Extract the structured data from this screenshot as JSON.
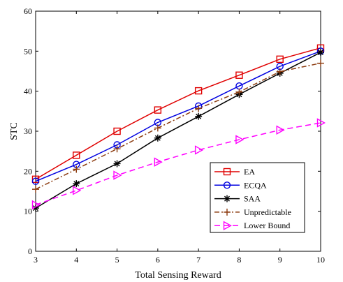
{
  "chart_data": {
    "type": "line",
    "xlabel": "Total Sensing Reward",
    "ylabel": "STC",
    "xlim": [
      3,
      10
    ],
    "ylim": [
      0,
      60
    ],
    "x": [
      3,
      4,
      5,
      6,
      7,
      8,
      9,
      10
    ],
    "xticks": [
      "3",
      "4",
      "5",
      "6",
      "7",
      "8",
      "9",
      "10"
    ],
    "yticks": [
      "0",
      "10",
      "20",
      "30",
      "40",
      "50",
      "60"
    ],
    "grid": false,
    "legend_position": "bottom-right",
    "series": [
      {
        "name": "EA",
        "color": "#e00000",
        "dash": "solid",
        "marker": "square",
        "values": [
          18.0,
          24.0,
          30.0,
          35.3,
          40.1,
          44.0,
          48.0,
          50.8
        ]
      },
      {
        "name": "ECQA",
        "color": "#0000e0",
        "dash": "solid",
        "marker": "circle",
        "values": [
          17.5,
          21.7,
          26.6,
          32.2,
          36.3,
          41.3,
          46.2,
          50.0
        ]
      },
      {
        "name": "SAA",
        "color": "#000000",
        "dash": "solid",
        "marker": "star",
        "values": [
          10.8,
          16.9,
          21.9,
          28.3,
          33.7,
          39.2,
          44.5,
          49.7
        ]
      },
      {
        "name": "Unpredictable",
        "color": "#8b3a0e",
        "dash": "dashdot",
        "marker": "plus",
        "values": [
          15.5,
          20.5,
          25.6,
          30.8,
          35.7,
          39.8,
          44.9,
          47.0
        ]
      },
      {
        "name": "Lower Bound",
        "color": "#ff00ff",
        "dash": "dashed",
        "marker": "triangle-right",
        "values": [
          11.6,
          15.2,
          19.0,
          22.3,
          25.3,
          27.9,
          30.3,
          32.1
        ]
      }
    ]
  }
}
